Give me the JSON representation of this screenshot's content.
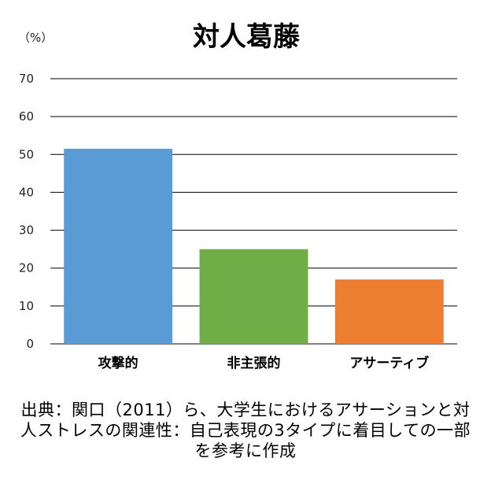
{
  "chart_data": {
    "type": "bar",
    "title": "対人葛藤",
    "ylabel": "（%）",
    "xlabel": "",
    "ylim": [
      0,
      70
    ],
    "yticks": [
      0,
      10,
      20,
      30,
      40,
      50,
      60,
      70
    ],
    "grid": true,
    "legend": "none",
    "categories": [
      "攻撃的",
      "非主張的",
      "アサーティブ"
    ],
    "values": [
      51.5,
      25,
      17
    ],
    "colors": [
      "#5b9bd5",
      "#70ad47",
      "#ed7d31"
    ]
  },
  "source_note": "出典：関口（2011）ら、大学生におけるアサーションと対人ストレスの関連性：自己表現の3タイプに着目しての一部を参考に作成"
}
